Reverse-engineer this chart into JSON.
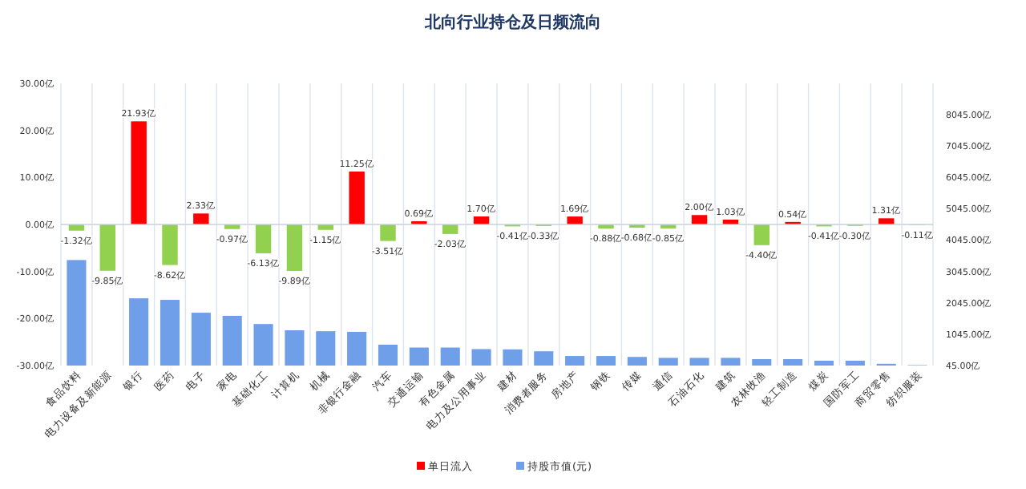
{
  "chart_data": {
    "type": "bar",
    "title": "北向行业持仓及日频流向",
    "categories": [
      "食品饮料",
      "电力设备及新能源",
      "银行",
      "医药",
      "电子",
      "家电",
      "基础化工",
      "计算机",
      "机械",
      "非银行金融",
      "汽车",
      "交通运输",
      "有色金属",
      "电力及公用事业",
      "建材",
      "消费者服务",
      "房地产",
      "钢铁",
      "传媒",
      "通信",
      "石油石化",
      "建筑",
      "农林牧渔",
      "轻工制造",
      "煤炭",
      "国防军工",
      "商贸零售",
      "纺织服装"
    ],
    "series": [
      {
        "name": "持股市值(元)",
        "axis": "y2",
        "color": "#6f9fe8",
        "values": [
          3410,
          null,
          2190,
          2140,
          1730,
          1630,
          1370,
          1170,
          1140,
          1120,
          710,
          620,
          620,
          570,
          560,
          500,
          350,
          350,
          320,
          290,
          290,
          290,
          250,
          250,
          200,
          200,
          100,
          60
        ]
      },
      {
        "name": "单日流入",
        "color": "#ff0000",
        "values": [
          -1.32,
          -9.85,
          21.93,
          -8.62,
          2.33,
          -0.97,
          -6.13,
          -9.89,
          -1.15,
          11.25,
          -3.51,
          0.69,
          -2.03,
          1.7,
          -0.41,
          -0.33,
          1.69,
          -0.88,
          -0.68,
          -0.85,
          2.0,
          1.03,
          -4.4,
          0.54,
          -0.41,
          -0.3,
          1.31,
          -0.11
        ],
        "colors": [
          "#92d050",
          "#92d050",
          "#ff0000",
          "#92d050",
          "#ff0000",
          "#92d050",
          "#92d050",
          "#92d050",
          "#92d050",
          "#ff0000",
          "#92d050",
          "#ff0000",
          "#92d050",
          "#ff0000",
          "#92d050",
          "#92d050",
          "#ff0000",
          "#92d050",
          "#92d050",
          "#92d050",
          "#ff0000",
          "#ff0000",
          "#92d050",
          "#ff0000",
          "#92d050",
          "#92d050",
          "#ff0000",
          "#92d050"
        ],
        "value_labels": [
          "-1.32亿",
          "-9.85亿",
          "21.93亿",
          "-8.62亿",
          "2.33亿",
          "-0.97亿",
          "-6.13亿",
          "-9.89亿",
          "-1.15亿",
          "11.25亿",
          "-3.51亿",
          "0.69亿",
          "-2.03亿",
          "1.70亿",
          "-0.41亿",
          "-0.33亿",
          "1.69亿",
          "-0.88亿",
          "-0.68亿",
          "-0.85亿",
          "2.00亿",
          "1.03亿",
          "-4.40亿",
          "0.54亿",
          "-0.41亿",
          "-0.30亿",
          "1.31亿",
          "-0.11亿"
        ]
      }
    ],
    "ylim": [
      -30,
      30
    ],
    "yticks": [
      {
        "value": -30,
        "label": "-30.00亿"
      },
      {
        "value": -20,
        "label": "-20.00亿"
      },
      {
        "value": -10,
        "label": "-10.00亿"
      },
      {
        "value": 0,
        "label": "0.00亿"
      },
      {
        "value": 10,
        "label": "10.00亿"
      },
      {
        "value": 20,
        "label": "20.00亿"
      },
      {
        "value": 30,
        "label": "30.00亿"
      }
    ],
    "y2lim": [
      45,
      9045
    ],
    "y2ticks": [
      {
        "value": 45,
        "label": "45.00亿"
      },
      {
        "value": 1045,
        "label": "1045.00亿"
      },
      {
        "value": 2045,
        "label": "2045.00亿"
      },
      {
        "value": 3045,
        "label": "3045.00亿"
      },
      {
        "value": 4045,
        "label": "4045.00亿"
      },
      {
        "value": 5045,
        "label": "5045.00亿"
      },
      {
        "value": 6045,
        "label": "6045.00亿"
      },
      {
        "value": 7045,
        "label": "7045.00亿"
      },
      {
        "value": 8045,
        "label": "8045.00亿"
      }
    ],
    "grid": "x",
    "legend": "bottom"
  }
}
